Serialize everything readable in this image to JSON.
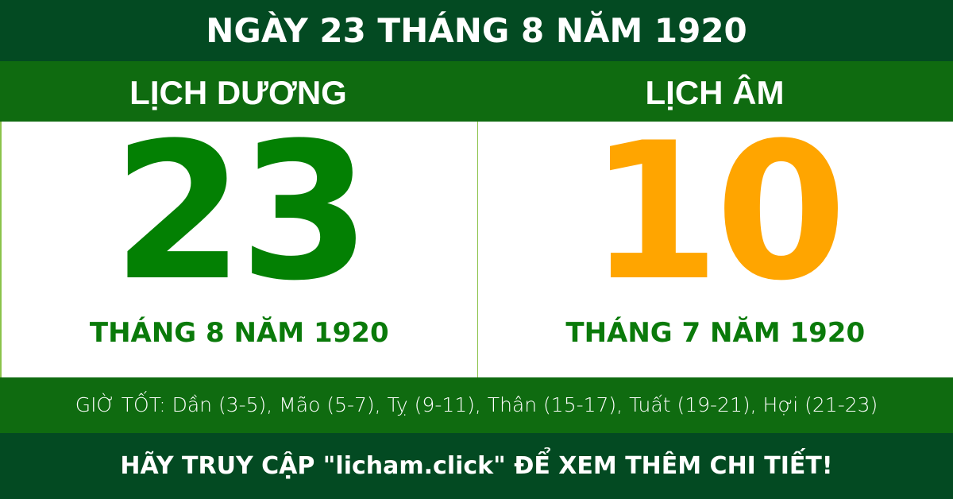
{
  "title": "NGÀY 23 THÁNG 8 NĂM 1920",
  "solar": {
    "label": "LỊCH DƯƠNG",
    "day": "23",
    "month_year": "THÁNG 8 NĂM 1920",
    "color": "#038003"
  },
  "lunar": {
    "label": "LỊCH ÂM",
    "day": "10",
    "month_year": "THÁNG 7 NĂM 1920",
    "color": "#ffa500"
  },
  "good_hours": "GIỜ TỐT: Dần (3-5), Mão (5-7), Tỵ (9-11), Thân (15-17), Tuất (19-21), Hợi (21-23)",
  "footer": "HÃY TRUY CẬP \"licham.click\" ĐỂ XEM THÊM CHI TIẾT!"
}
